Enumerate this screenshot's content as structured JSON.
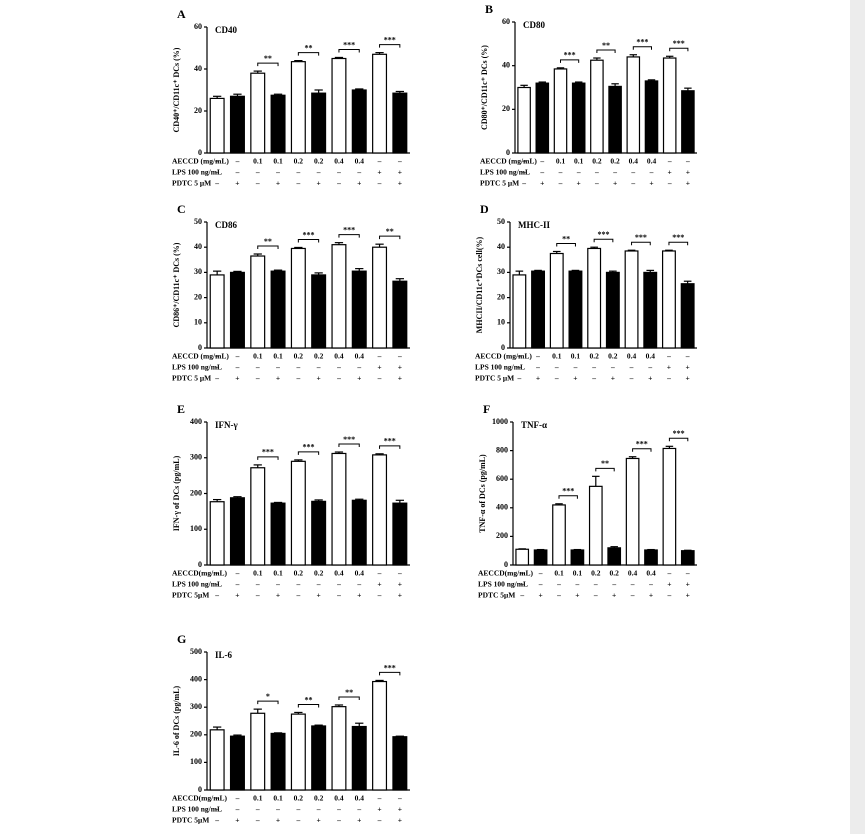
{
  "chart_data": [
    {
      "type": "bar",
      "panel": "A",
      "title": "CD40",
      "y_label": "CD40⁺/CD11c⁺ DCs (%)",
      "ylim": [
        0,
        60
      ],
      "yticks": [
        0,
        20,
        40,
        60
      ],
      "series": [
        {
          "color": "#ffffff",
          "values": [
            26,
            38,
            43.5,
            45,
            47
          ],
          "errors": [
            1,
            1,
            0.5,
            0.5,
            0.8
          ]
        },
        {
          "color": "#000000",
          "values": [
            27,
            27.5,
            28.5,
            30,
            28.5
          ],
          "errors": [
            1,
            0.5,
            1.5,
            0.5,
            0.8
          ]
        }
      ],
      "significance": [
        "**",
        "**",
        "***",
        "***"
      ],
      "conditions": [
        {
          "label": "AECCD (mg/mL)",
          "values": [
            "–",
            "–",
            "0.1",
            "0.1",
            "0.2",
            "0.2",
            "0.4",
            "0.4",
            "–",
            "–"
          ]
        },
        {
          "label": "LPS 100 ng/mL",
          "values": [
            "–",
            "–",
            "–",
            "–",
            "–",
            "–",
            "–",
            "–",
            "+",
            "+"
          ]
        },
        {
          "label": "PDTC  5 μM",
          "values": [
            "–",
            "+",
            "–",
            "+",
            "–",
            "+",
            "–",
            "+",
            "–",
            "+"
          ]
        }
      ]
    },
    {
      "type": "bar",
      "panel": "B",
      "title": "CD80",
      "y_label": "CD80⁺/CD11c⁺ DCs (%)",
      "ylim": [
        0,
        60
      ],
      "yticks": [
        0,
        20,
        40,
        60
      ],
      "series": [
        {
          "color": "#ffffff",
          "values": [
            30,
            38.5,
            42.5,
            44,
            43.5
          ],
          "errors": [
            1,
            0.5,
            1,
            1,
            0.8
          ]
        },
        {
          "color": "#000000",
          "values": [
            32,
            32,
            30.5,
            33,
            28.5
          ],
          "errors": [
            0.5,
            0.5,
            1.2,
            0.5,
            1.2
          ]
        }
      ],
      "significance": [
        "***",
        "**",
        "***",
        "***"
      ],
      "conditions": [
        {
          "label": "AECCD (mg/mL)",
          "values": [
            "–",
            "–",
            "0.1",
            "0.1",
            "0.2",
            "0.2",
            "0.4",
            "0.4",
            "–",
            "–"
          ]
        },
        {
          "label": "LPS 100 ng/mL",
          "values": [
            "–",
            "–",
            "–",
            "–",
            "–",
            "–",
            "–",
            "–",
            "+",
            "+"
          ]
        },
        {
          "label": "PDTC  5 μM",
          "values": [
            "–",
            "+",
            "–",
            "+",
            "–",
            "+",
            "–",
            "+",
            "–",
            "+"
          ]
        }
      ]
    },
    {
      "type": "bar",
      "panel": "C",
      "title": "CD86",
      "y_label": "CD86⁺/CD11c⁺ DCs (%)",
      "ylim": [
        0,
        50
      ],
      "yticks": [
        0,
        10,
        20,
        30,
        40,
        50
      ],
      "series": [
        {
          "color": "#ffffff",
          "values": [
            29,
            36.5,
            39.5,
            41,
            40
          ],
          "errors": [
            1.5,
            0.8,
            0.4,
            0.8,
            1.2
          ]
        },
        {
          "color": "#000000",
          "values": [
            30,
            30.5,
            29,
            30.5,
            26.5
          ],
          "errors": [
            0.4,
            0.4,
            0.8,
            1,
            1
          ]
        }
      ],
      "significance": [
        "**",
        "***",
        "***",
        "**"
      ],
      "conditions": [
        {
          "label": "AECCD (mg/mL)",
          "values": [
            "–",
            "–",
            "0.1",
            "0.1",
            "0.2",
            "0.2",
            "0.4",
            "0.4",
            "–",
            "–"
          ]
        },
        {
          "label": "LPS 100 ng/mL",
          "values": [
            "–",
            "–",
            "–",
            "–",
            "–",
            "–",
            "–",
            "–",
            "+",
            "+"
          ]
        },
        {
          "label": "PDTC  5 μM",
          "values": [
            "–",
            "+",
            "–",
            "+",
            "–",
            "+",
            "–",
            "+",
            "–",
            "+"
          ]
        }
      ]
    },
    {
      "type": "bar",
      "panel": "D",
      "title": "MHC-II",
      "y_label": "MHCII/CD11c⁺DCs cell(%)",
      "ylim": [
        0,
        50
      ],
      "yticks": [
        0,
        10,
        20,
        30,
        40,
        50
      ],
      "series": [
        {
          "color": "#ffffff",
          "values": [
            29,
            37.5,
            39.5,
            38.5,
            38.5
          ],
          "errors": [
            1.5,
            0.8,
            0.5,
            0.3,
            0.3
          ]
        },
        {
          "color": "#000000",
          "values": [
            30.5,
            30.5,
            30,
            30,
            25.5
          ],
          "errors": [
            0.3,
            0.3,
            0.5,
            0.8,
            1
          ]
        }
      ],
      "significance": [
        "**",
        "***",
        "***",
        "***"
      ],
      "conditions": [
        {
          "label": "AECCD (mg/mL)",
          "values": [
            "–",
            "–",
            "0.1",
            "0.1",
            "0.2",
            "0.2",
            "0.4",
            "0.4",
            "–",
            "–"
          ]
        },
        {
          "label": "LPS 100 ng/mL",
          "values": [
            "–",
            "–",
            "–",
            "–",
            "–",
            "–",
            "–",
            "–",
            "+",
            "+"
          ]
        },
        {
          "label": "PDTC  5 μM",
          "values": [
            "–",
            "+",
            "–",
            "+",
            "–",
            "+",
            "–",
            "+",
            "–",
            "+"
          ]
        }
      ]
    },
    {
      "type": "bar",
      "panel": "E",
      "title": "IFN-γ",
      "y_label": "IFN-γ of DCs (pg/mL)",
      "ylim": [
        0,
        400
      ],
      "yticks": [
        0,
        100,
        200,
        300,
        400
      ],
      "series": [
        {
          "color": "#ffffff",
          "values": [
            177,
            272,
            290,
            312,
            308
          ],
          "errors": [
            6,
            8,
            4,
            4,
            3
          ]
        },
        {
          "color": "#000000",
          "values": [
            188,
            173,
            178,
            181,
            173
          ],
          "errors": [
            3,
            2,
            4,
            3,
            8
          ]
        }
      ],
      "significance": [
        "***",
        "***",
        "***",
        "***"
      ],
      "conditions": [
        {
          "label": "AECCD(mg/mL)",
          "values": [
            "–",
            "–",
            "0.1",
            "0.1",
            "0.2",
            "0.2",
            "0.4",
            "0.4",
            "–",
            "–"
          ]
        },
        {
          "label": "LPS 100 ng/mL",
          "values": [
            "–",
            "–",
            "–",
            "–",
            "–",
            "–",
            "–",
            "–",
            "+",
            "+"
          ]
        },
        {
          "label": "PDTC  5μM",
          "values": [
            "–",
            "+",
            "–",
            "+",
            "–",
            "+",
            "–",
            "+",
            "–",
            "+"
          ]
        }
      ]
    },
    {
      "type": "bar",
      "panel": "F",
      "title": "TNF-α",
      "y_label": "TNF-α of DCs (pg/mL)",
      "ylim": [
        0,
        1000
      ],
      "yticks": [
        0,
        200,
        400,
        600,
        800,
        1000
      ],
      "series": [
        {
          "color": "#ffffff",
          "values": [
            110,
            420,
            550,
            745,
            815
          ],
          "errors": [
            3,
            8,
            70,
            12,
            15
          ]
        },
        {
          "color": "#000000",
          "values": [
            105,
            105,
            120,
            105,
            100
          ],
          "errors": [
            3,
            3,
            8,
            3,
            3
          ]
        }
      ],
      "significance": [
        "***",
        "**",
        "***",
        "***"
      ],
      "conditions": [
        {
          "label": "AECCD(mg/mL)",
          "values": [
            "–",
            "–",
            "0.1",
            "0.1",
            "0.2",
            "0.2",
            "0.4",
            "0.4",
            "–",
            "–"
          ]
        },
        {
          "label": "LPS 100 ng/mL",
          "values": [
            "–",
            "–",
            "–",
            "–",
            "–",
            "–",
            "–",
            "–",
            "+",
            "+"
          ]
        },
        {
          "label": "PDTC  5μM",
          "values": [
            "–",
            "+",
            "–",
            "+",
            "–",
            "+",
            "–",
            "+",
            "–",
            "+"
          ]
        }
      ]
    },
    {
      "type": "bar",
      "panel": "G",
      "title": "IL-6",
      "y_label": "IL-6 of DCs (pg/mL)",
      "ylim": [
        0,
        500
      ],
      "yticks": [
        0,
        100,
        200,
        300,
        400,
        500
      ],
      "series": [
        {
          "color": "#ffffff",
          "values": [
            218,
            278,
            275,
            302,
            393
          ],
          "errors": [
            10,
            15,
            6,
            6,
            4
          ]
        },
        {
          "color": "#000000",
          "values": [
            195,
            205,
            232,
            230,
            193
          ],
          "errors": [
            4,
            2,
            3,
            12,
            2
          ]
        }
      ],
      "significance": [
        "*",
        "**",
        "**",
        "***"
      ],
      "conditions": [
        {
          "label": "AECCD(mg/mL)",
          "values": [
            "–",
            "–",
            "0.1",
            "0.1",
            "0.2",
            "0.2",
            "0.4",
            "0.4",
            "–",
            "–"
          ]
        },
        {
          "label": "LPS 100 ng/mL",
          "values": [
            "–",
            "–",
            "–",
            "–",
            "–",
            "–",
            "–",
            "–",
            "+",
            "+"
          ]
        },
        {
          "label": "PDTC  5μM",
          "values": [
            "–",
            "+",
            "–",
            "+",
            "–",
            "+",
            "–",
            "+",
            "–",
            "+"
          ]
        }
      ]
    }
  ]
}
